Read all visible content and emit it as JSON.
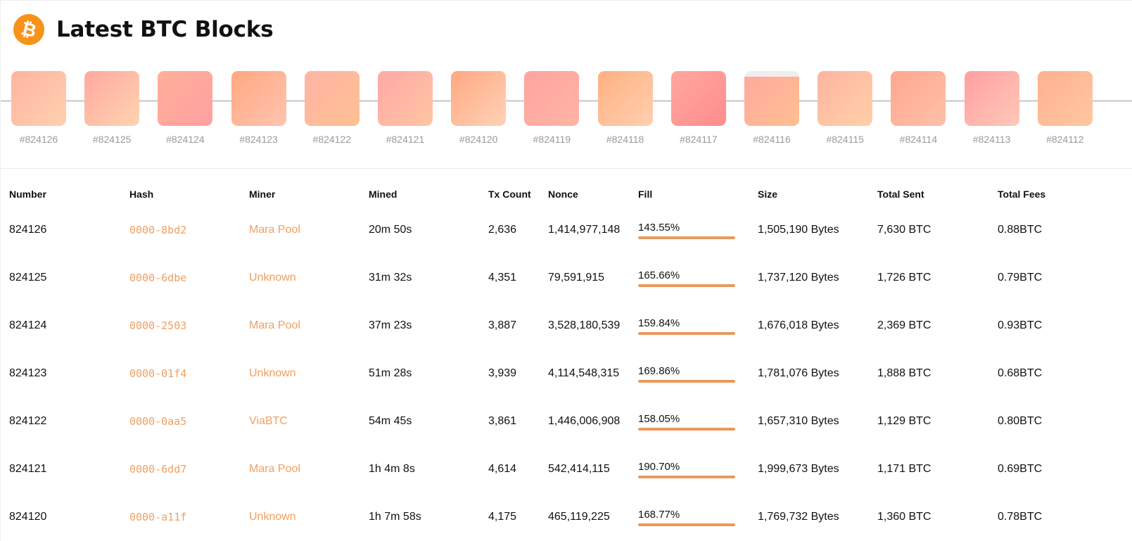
{
  "header": {
    "title": "Latest BTC Blocks",
    "logo_icon": "bitcoin-icon",
    "logo_glyph": "₿",
    "accent_color": "#f7931a"
  },
  "blocks": [
    {
      "label": "#824126",
      "c1": "#ffb4a0",
      "c2": "#ffd0b0",
      "fill": 1.0
    },
    {
      "label": "#824125",
      "c1": "#ffa8a0",
      "c2": "#ffd4b0",
      "fill": 1.0
    },
    {
      "label": "#824124",
      "c1": "#ffb09a",
      "c2": "#ffa0a0",
      "fill": 1.0
    },
    {
      "label": "#824123",
      "c1": "#ffa880",
      "c2": "#ffc4b0",
      "fill": 1.0
    },
    {
      "label": "#824122",
      "c1": "#ffb4a8",
      "c2": "#ffc090",
      "fill": 1.0
    },
    {
      "label": "#824121",
      "c1": "#ffa8a8",
      "c2": "#ffc6a0",
      "fill": 1.0
    },
    {
      "label": "#824120",
      "c1": "#ffa880",
      "c2": "#ffd2b8",
      "fill": 1.0
    },
    {
      "label": "#824119",
      "c1": "#ffa4a0",
      "c2": "#ffb4a4",
      "fill": 1.0
    },
    {
      "label": "#824118",
      "c1": "#ffb080",
      "c2": "#ffd0b0",
      "fill": 1.0
    },
    {
      "label": "#824117",
      "c1": "#ffa8a0",
      "c2": "#ff8c8c",
      "fill": 1.0
    },
    {
      "label": "#824116",
      "c1": "#ffa8a0",
      "c2": "#ffc090",
      "fill": 0.9
    },
    {
      "label": "#824115",
      "c1": "#ffb4a0",
      "c2": "#ffd0a8",
      "fill": 1.0
    },
    {
      "label": "#824114",
      "c1": "#ffa890",
      "c2": "#ffc0a8",
      "fill": 1.0
    },
    {
      "label": "#824113",
      "c1": "#ffa0a0",
      "c2": "#ffc8b8",
      "fill": 1.0
    },
    {
      "label": "#824112",
      "c1": "#ffb090",
      "c2": "#ffc8a0",
      "fill": 1.0
    }
  ],
  "table": {
    "headers": {
      "number": "Number",
      "hash": "Hash",
      "miner": "Miner",
      "mined": "Mined",
      "tx_count": "Tx Count",
      "nonce": "Nonce",
      "fill": "Fill",
      "size": "Size",
      "total_sent": "Total Sent",
      "total_fees": "Total Fees"
    },
    "rows": [
      {
        "number": "824126",
        "hash": "0000-8bd2",
        "miner": "Mara Pool",
        "mined": "20m 50s",
        "tx_count": "2,636",
        "nonce": "1,414,977,148",
        "fill": "143.55%",
        "fill_value": 1.4355,
        "size": "1,505,190 Bytes",
        "total_sent": "7,630 BTC",
        "total_fees": "0.88BTC"
      },
      {
        "number": "824125",
        "hash": "0000-6dbe",
        "miner": "Unknown",
        "mined": "31m 32s",
        "tx_count": "4,351",
        "nonce": "79,591,915",
        "fill": "165.66%",
        "fill_value": 1.6566,
        "size": "1,737,120 Bytes",
        "total_sent": "1,726 BTC",
        "total_fees": "0.79BTC"
      },
      {
        "number": "824124",
        "hash": "0000-2503",
        "miner": "Mara Pool",
        "mined": "37m 23s",
        "tx_count": "3,887",
        "nonce": "3,528,180,539",
        "fill": "159.84%",
        "fill_value": 1.5984,
        "size": "1,676,018 Bytes",
        "total_sent": "2,369 BTC",
        "total_fees": "0.93BTC"
      },
      {
        "number": "824123",
        "hash": "0000-01f4",
        "miner": "Unknown",
        "mined": "51m 28s",
        "tx_count": "3,939",
        "nonce": "4,114,548,315",
        "fill": "169.86%",
        "fill_value": 1.6986,
        "size": "1,781,076 Bytes",
        "total_sent": "1,888 BTC",
        "total_fees": "0.68BTC"
      },
      {
        "number": "824122",
        "hash": "0000-0aa5",
        "miner": "ViaBTC",
        "mined": "54m 45s",
        "tx_count": "3,861",
        "nonce": "1,446,006,908",
        "fill": "158.05%",
        "fill_value": 1.5805,
        "size": "1,657,310 Bytes",
        "total_sent": "1,129 BTC",
        "total_fees": "0.80BTC"
      },
      {
        "number": "824121",
        "hash": "0000-6dd7",
        "miner": "Mara Pool",
        "mined": "1h 4m 8s",
        "tx_count": "4,614",
        "nonce": "542,414,115",
        "fill": "190.70%",
        "fill_value": 1.907,
        "size": "1,999,673 Bytes",
        "total_sent": "1,171 BTC",
        "total_fees": "0.69BTC"
      },
      {
        "number": "824120",
        "hash": "0000-a11f",
        "miner": "Unknown",
        "mined": "1h 7m 58s",
        "tx_count": "4,175",
        "nonce": "465,119,225",
        "fill": "168.77%",
        "fill_value": 1.6877,
        "size": "1,769,732 Bytes",
        "total_sent": "1,360 BTC",
        "total_fees": "0.78BTC"
      }
    ]
  }
}
